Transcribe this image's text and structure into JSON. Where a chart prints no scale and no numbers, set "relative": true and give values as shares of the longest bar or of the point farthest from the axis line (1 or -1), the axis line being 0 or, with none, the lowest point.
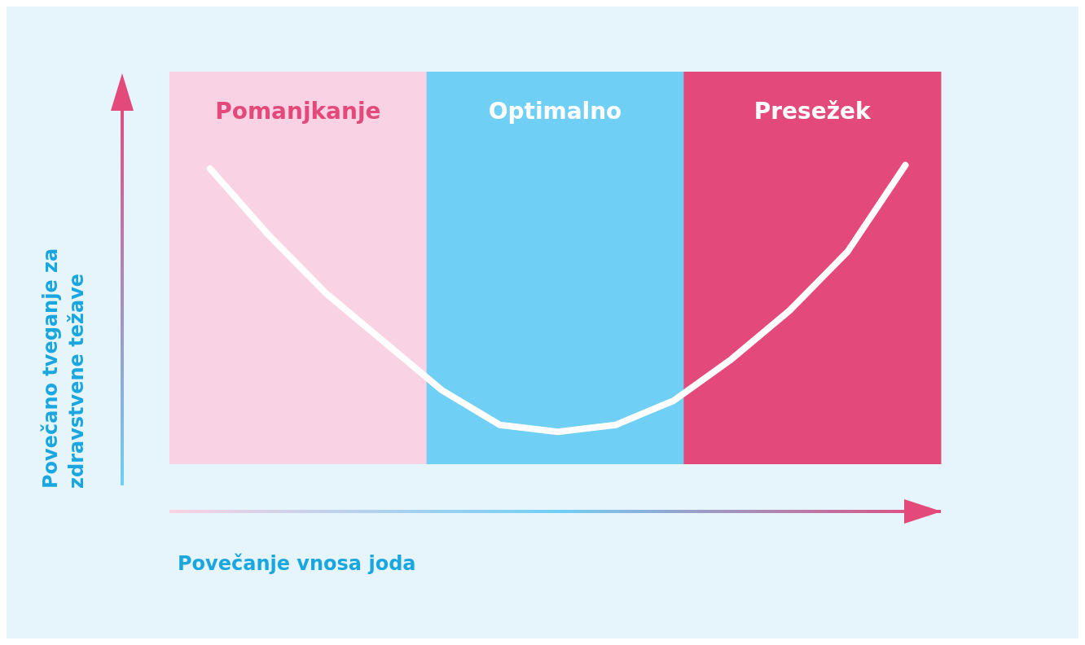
{
  "chart_data": {
    "type": "line",
    "relative": true,
    "xlabel": "Povečanje vnosa joda",
    "ylabel": "Povečano tveganje za zdravstvene težave",
    "grid": false,
    "legend": false,
    "marker": "none",
    "line_style": "solid",
    "categories": [
      null,
      null,
      null,
      null,
      null,
      null,
      null,
      null,
      null,
      null,
      null,
      null,
      null
    ],
    "series": [
      {
        "color": "#ffffff",
        "values": [
          0.99,
          0.8,
          0.63,
          0.49,
          0.35,
          0.25,
          0.23,
          0.25,
          0.32,
          0.44,
          0.58,
          0.75,
          1
        ]
      }
    ],
    "annotations": [
      "Pomanjkanje",
      "Optimalno",
      "Presežek"
    ]
  }
}
